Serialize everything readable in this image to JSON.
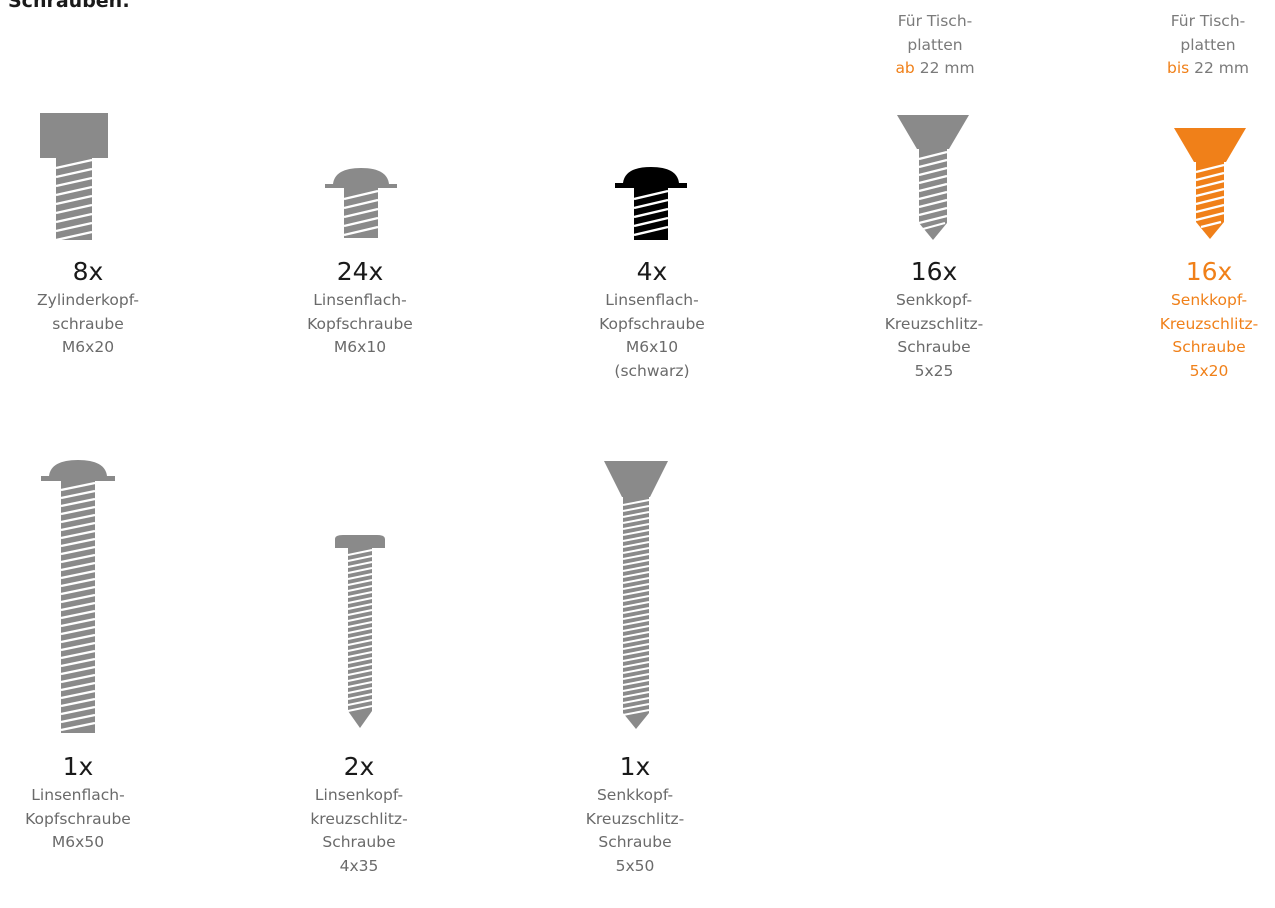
{
  "heading": "Schrauben:",
  "colors": {
    "grey": "#8a8a8a",
    "black": "#000000",
    "orange": "#f08019",
    "text": "#1a1a1a",
    "muted": "#6a6a6a"
  },
  "notes": [
    {
      "line1": "Für Tisch-",
      "line2": "platten",
      "highlight": "ab",
      "rest": " 22 mm"
    },
    {
      "line1": "Für Tisch-",
      "line2": "platten",
      "highlight": "bis",
      "rest": " 22 mm"
    }
  ],
  "screws": [
    {
      "qty": "8x",
      "lines": [
        "Zylinderkopf-",
        "schraube",
        "M6x20"
      ],
      "head": "cylinder",
      "color": "grey"
    },
    {
      "qty": "24x",
      "lines": [
        "Linsenflach-",
        "Kopfschraube",
        "M6x10"
      ],
      "head": "pan-flange",
      "color": "grey"
    },
    {
      "qty": "4x",
      "lines": [
        "Linsenflach-",
        "Kopfschraube",
        "M6x10",
        "(schwarz)"
      ],
      "head": "pan-flange",
      "color": "black"
    },
    {
      "qty": "16x",
      "lines": [
        "Senkkopf-",
        "Kreuzschlitz-",
        "Schraube",
        "5x25"
      ],
      "head": "countersunk",
      "color": "grey"
    },
    {
      "qty": "16x",
      "lines": [
        "Senkkopf-",
        "Kreuzschlitz-",
        "Schraube",
        "5x20"
      ],
      "head": "countersunk",
      "color": "orange"
    },
    {
      "qty": "1x",
      "lines": [
        "Linsenflach-",
        "Kopfschraube",
        "M6x50"
      ],
      "head": "pan-flange",
      "color": "grey"
    },
    {
      "qty": "2x",
      "lines": [
        "Linsenkopf-",
        "kreuzschlitz-",
        "Schraube",
        "4x35"
      ],
      "head": "pan",
      "color": "grey"
    },
    {
      "qty": "1x",
      "lines": [
        "Senkkopf-",
        "Kreuzschlitz-",
        "Schraube",
        "5x50"
      ],
      "head": "countersunk",
      "color": "grey"
    }
  ]
}
